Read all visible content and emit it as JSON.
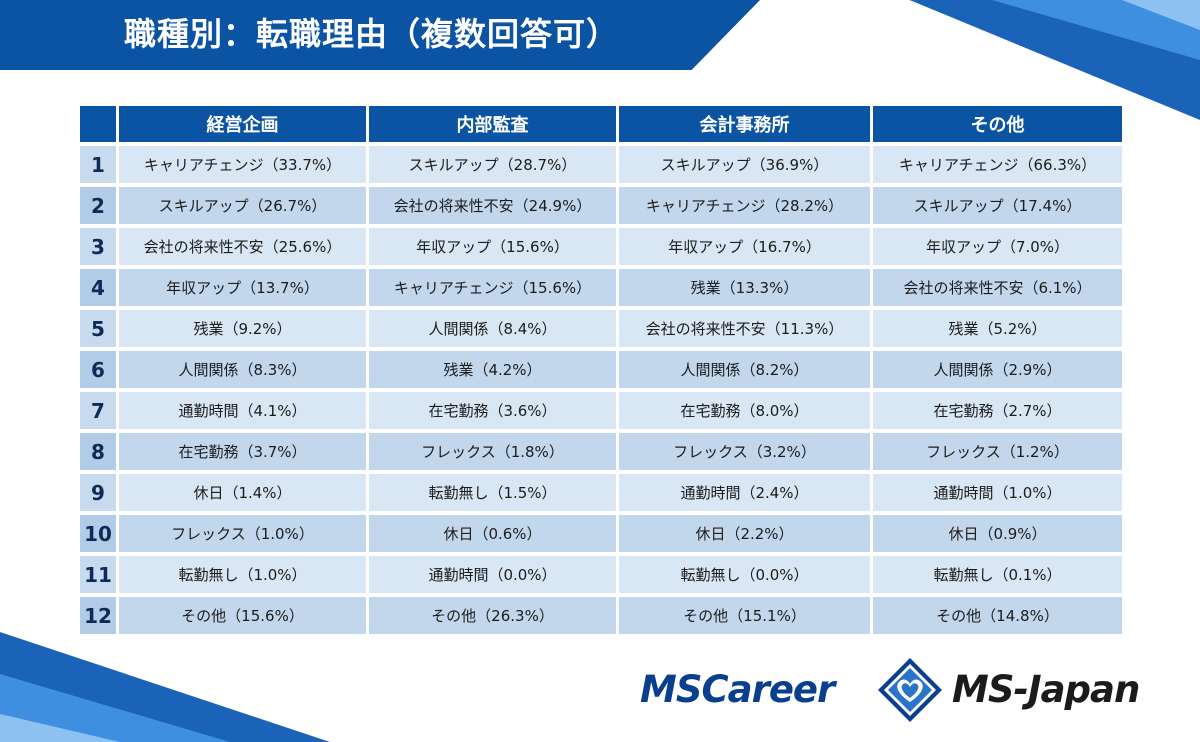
{
  "title": "職種別：転職理由（複数回答可）",
  "columns": [
    "経営企画",
    "内部監査",
    "会計事務所",
    "その他"
  ],
  "rows": [
    {
      "rank": "1",
      "cells": [
        "キャリアチェンジ（33.7%）",
        "スキルアップ（28.7%）",
        "スキルアップ（36.9%）",
        "キャリアチェンジ（66.3%）"
      ]
    },
    {
      "rank": "2",
      "cells": [
        "スキルアップ（26.7%）",
        "会社の将来性不安（24.9%）",
        "キャリアチェンジ（28.2%）",
        "スキルアップ（17.4%）"
      ]
    },
    {
      "rank": "3",
      "cells": [
        "会社の将来性不安（25.6%）",
        "年収アップ（15.6%）",
        "年収アップ（16.7%）",
        "年収アップ（7.0%）"
      ]
    },
    {
      "rank": "4",
      "cells": [
        "年収アップ（13.7%）",
        "キャリアチェンジ（15.6%）",
        "残業（13.3%）",
        "会社の将来性不安（6.1%）"
      ]
    },
    {
      "rank": "5",
      "cells": [
        "残業（9.2%）",
        "人間関係（8.4%）",
        "会社の将来性不安（11.3%）",
        "残業（5.2%）"
      ]
    },
    {
      "rank": "6",
      "cells": [
        "人間関係（8.3%）",
        "残業（4.2%）",
        "人間関係（8.2%）",
        "人間関係（2.9%）"
      ]
    },
    {
      "rank": "7",
      "cells": [
        "通勤時間（4.1%）",
        "在宅勤務（3.6%）",
        "在宅勤務（8.0%）",
        "在宅勤務（2.7%）"
      ]
    },
    {
      "rank": "8",
      "cells": [
        "在宅勤務（3.7%）",
        "フレックス（1.8%）",
        "フレックス（3.2%）",
        "フレックス（1.2%）"
      ]
    },
    {
      "rank": "9",
      "cells": [
        "休日（1.4%）",
        "転勤無し（1.5%）",
        "通勤時間（2.4%）",
        "通勤時間（1.0%）"
      ]
    },
    {
      "rank": "10",
      "cells": [
        "フレックス（1.0%）",
        "休日（0.6%）",
        "休日（2.2%）",
        "休日（0.9%）"
      ]
    },
    {
      "rank": "11",
      "cells": [
        "転勤無し（1.0%）",
        "通勤時間（0.0%）",
        "転勤無し（0.0%）",
        "転勤無し（0.1%）"
      ]
    },
    {
      "rank": "12",
      "cells": [
        "その他（15.6%）",
        "その他（26.3%）",
        "その他（15.1%）",
        "その他（14.8%）"
      ]
    }
  ],
  "logos": {
    "left": "MSCareer",
    "right": "MS-Japan",
    "mark_icon": "heart-diamond-icon"
  },
  "colors": {
    "brand_blue": "#0b53a3",
    "row_light": "#d9e6f3",
    "row_dark": "#c2d7ec"
  }
}
